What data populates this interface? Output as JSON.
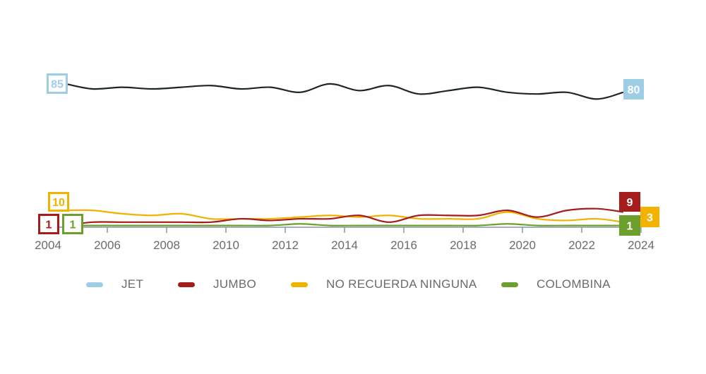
{
  "chart_data": {
    "type": "line",
    "title": "",
    "xlabel": "",
    "ylabel": "",
    "xlim": [
      2004,
      2024
    ],
    "ylim": [
      0,
      90
    ],
    "grid": false,
    "legend_position": "bottom",
    "x_ticks": [
      "2004",
      "2006",
      "2008",
      "2010",
      "2012",
      "2014",
      "2016",
      "2018",
      "2020",
      "2022",
      "2024"
    ],
    "x": [
      2004.6,
      2005.5,
      2006.5,
      2007.5,
      2008.5,
      2009.5,
      2010.5,
      2011.5,
      2012.5,
      2013.5,
      2014.5,
      2015.5,
      2016.5,
      2017.5,
      2018.5,
      2019.5,
      2020.5,
      2021.5,
      2022.5,
      2023.4
    ],
    "series": [
      {
        "name": "JET",
        "color": "#9ecde6",
        "line_color": "#1c2626",
        "values": [
          85,
          82,
          83,
          82,
          83,
          84,
          82,
          83,
          80,
          85,
          81,
          84,
          79,
          81,
          83,
          80,
          79,
          80,
          76,
          80
        ],
        "start_label": "85",
        "end_label": "80"
      },
      {
        "name": "JUMBO",
        "color": "#a51c1c",
        "values": [
          1,
          3,
          3,
          3,
          3,
          3,
          5,
          4,
          5,
          5,
          7,
          3,
          7,
          7,
          7,
          10,
          6,
          10,
          11,
          9
        ],
        "start_label": "1",
        "end_label": "9"
      },
      {
        "name": "NO RECUERDA NINGUNA",
        "color": "#f2b200",
        "values": [
          10,
          10,
          8,
          7,
          8,
          5,
          5,
          5,
          6,
          7,
          6,
          7,
          5,
          5,
          5,
          9,
          5,
          4,
          5,
          3
        ],
        "start_label": "10",
        "end_label": "3"
      },
      {
        "name": "COLOMBINA",
        "color": "#6d9f2c",
        "values": [
          1,
          1,
          1,
          1,
          1,
          1,
          1,
          1,
          2,
          1,
          1,
          1,
          1,
          1,
          1,
          2,
          1,
          1,
          1,
          1
        ],
        "start_label": "1",
        "end_label": "1"
      }
    ]
  }
}
